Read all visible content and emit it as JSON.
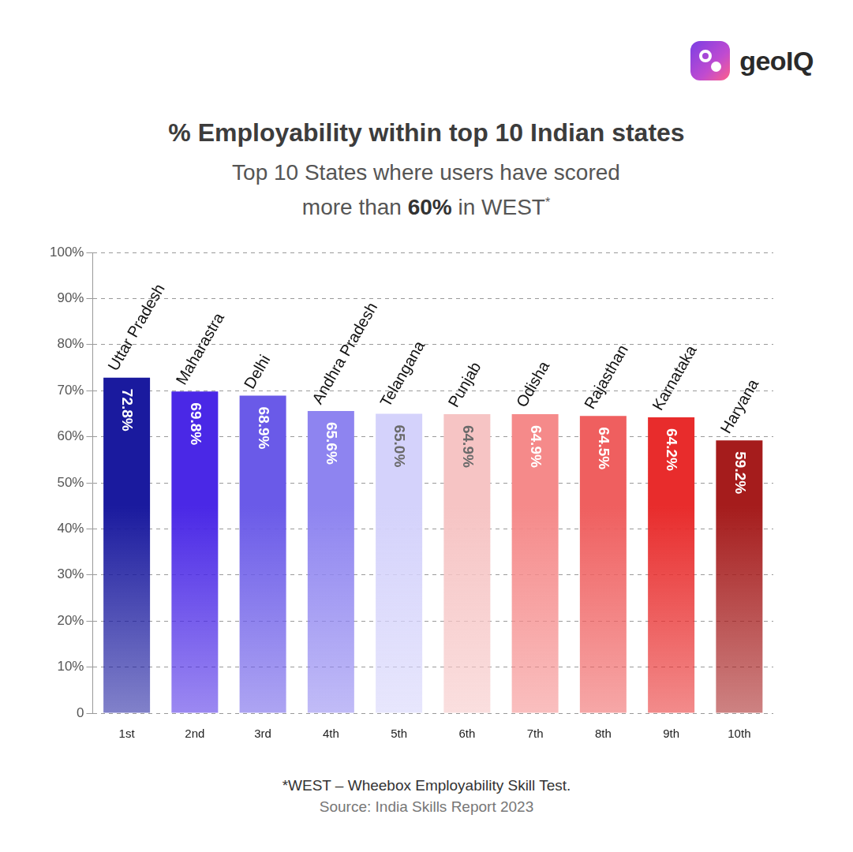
{
  "logo": "geoIQ",
  "chart_data": {
    "type": "bar",
    "title": "% Employability within top 10 Indian states",
    "subtitle": "Top 10 States where users have scored more than 60% in WEST*",
    "categories": [
      "1st",
      "2nd",
      "3rd",
      "4th",
      "5th",
      "6th",
      "7th",
      "8th",
      "9th",
      "10th"
    ],
    "annotations": [
      "Uttar Pradesh",
      "Maharastra",
      "Delhi",
      "Andhra Pradesh",
      "Telangana",
      "Punjab",
      "Odisha",
      "Rajasthan",
      "Karnataka",
      "Haryana"
    ],
    "values": [
      72.8,
      69.8,
      68.9,
      65.6,
      65.0,
      64.9,
      64.9,
      64.5,
      64.2,
      59.2
    ],
    "value_labels": [
      "72.8%",
      "69.8%",
      "68.9%",
      "65.6%",
      "65.0%",
      "64.9%",
      "64.9%",
      "64.5%",
      "64.2%",
      "59.2%"
    ],
    "colors": [
      "#1a1a9e",
      "#4a28e6",
      "#6a5ae8",
      "#8e84f0",
      "#d4d2fb",
      "#f6c4c4",
      "#f58a8a",
      "#ef5f5f",
      "#e82c2c",
      "#a51c1c"
    ],
    "ylim": [
      0,
      100
    ],
    "yticks": [
      0,
      {
        "value": 10,
        "label": "10%"
      },
      {
        "value": 20,
        "label": "20%"
      },
      {
        "value": 30,
        "label": "30%"
      },
      {
        "value": 40,
        "label": "40%"
      },
      {
        "value": 50,
        "label": "50%"
      },
      {
        "value": 60,
        "label": "60%"
      },
      {
        "value": 70,
        "label": "70%"
      },
      {
        "value": 80,
        "label": "80%"
      },
      {
        "value": 90,
        "label": "90%"
      },
      {
        "value": 100,
        "label": "100%"
      }
    ],
    "grid": true,
    "data_labels": true
  },
  "footnote": "*WEST – Wheebox Employability Skill Test.",
  "source": "Source: India Skills Report 2023"
}
